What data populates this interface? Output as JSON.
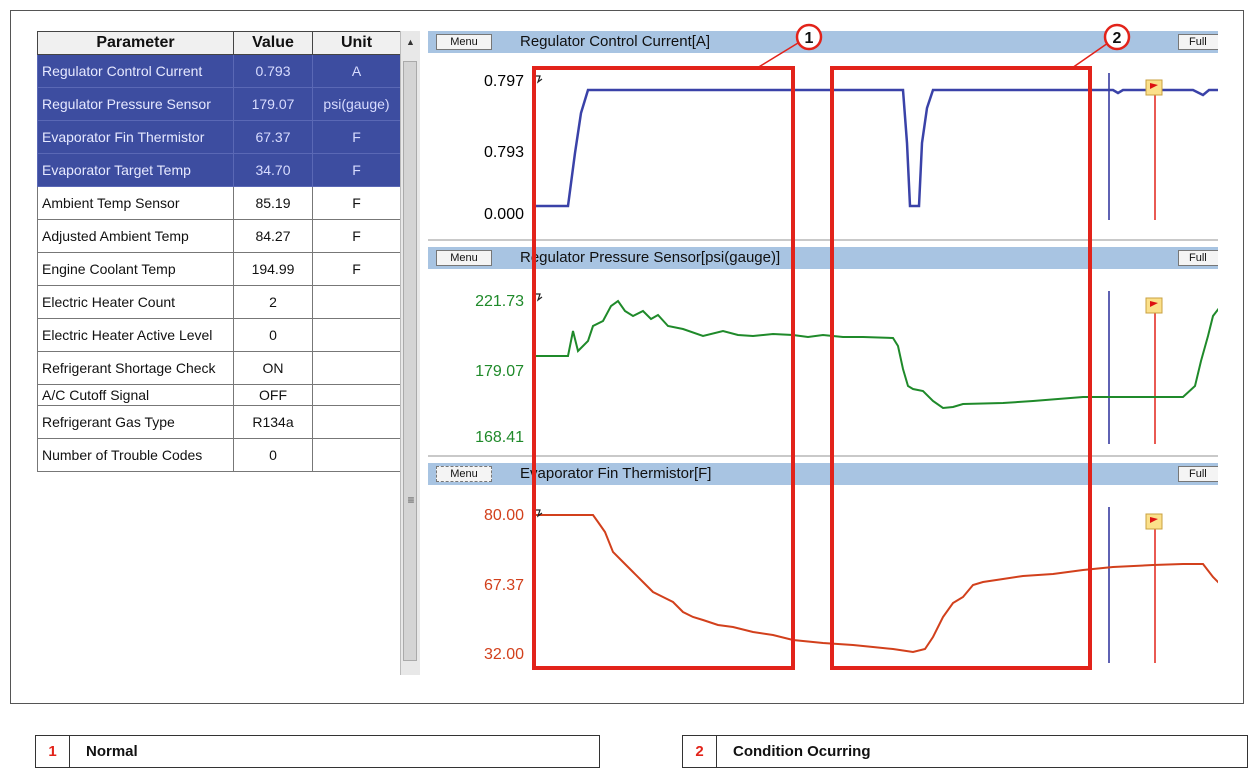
{
  "table": {
    "headers": {
      "parameter": "Parameter",
      "value": "Value",
      "unit": "Unit"
    },
    "rows": [
      {
        "name": "Regulator Control Current",
        "value": "0.793",
        "unit": "A",
        "selected": true
      },
      {
        "name": "Regulator Pressure Sensor",
        "value": "179.07",
        "unit": "psi(gauge)",
        "selected": true
      },
      {
        "name": "Evaporator Fin Thermistor",
        "value": "67.37",
        "unit": "F",
        "selected": true
      },
      {
        "name": "Evaporator Target Temp",
        "value": "34.70",
        "unit": "F",
        "selected": true
      },
      {
        "name": "Ambient Temp Sensor",
        "value": "85.19",
        "unit": "F",
        "selected": false
      },
      {
        "name": "Adjusted Ambient Temp",
        "value": "84.27",
        "unit": "F",
        "selected": false
      },
      {
        "name": "Engine Coolant Temp",
        "value": "194.99",
        "unit": "F",
        "selected": false
      },
      {
        "name": "Electric Heater Count",
        "value": "2",
        "unit": "",
        "selected": false
      },
      {
        "name": "Electric Heater Active Level",
        "value": "0",
        "unit": "",
        "selected": false
      },
      {
        "name": "Refrigerant Shortage Check",
        "value": "ON",
        "unit": "",
        "selected": false
      },
      {
        "name": "A/C Cutoff Signal",
        "value": "OFF",
        "unit": "",
        "selected": false
      },
      {
        "name": "Refrigerant Gas Type",
        "value": "R134a",
        "unit": "",
        "selected": false
      },
      {
        "name": "Number of Trouble Codes",
        "value": "0",
        "unit": "",
        "selected": false
      }
    ]
  },
  "graphs": {
    "menu_label": "Menu",
    "full_label": "Full",
    "panels": [
      {
        "title": "Regulator Control Current[A]",
        "y_labels": [
          "0.797",
          "0.793",
          "0.000"
        ],
        "color": "#3a42a8"
      },
      {
        "title": "Regulator Pressure Sensor[psi(gauge)]",
        "y_labels": [
          "221.73",
          "179.07",
          "168.41"
        ],
        "color": "#1f8a2a"
      },
      {
        "title": "Evaporator Fin Thermistor[F]",
        "y_labels": [
          "80.00",
          "67.37",
          "32.00"
        ],
        "color": "#d2401c"
      }
    ]
  },
  "callouts": [
    {
      "number": "1",
      "label": "Normal"
    },
    {
      "number": "2",
      "label": "Condition Ocurring"
    }
  ],
  "colors": {
    "highlight_red": "#e2231a",
    "selected_row": "#3d4da0",
    "panel_header": "#a8c4e2",
    "cursor_blue": "#2a2f9a"
  }
}
